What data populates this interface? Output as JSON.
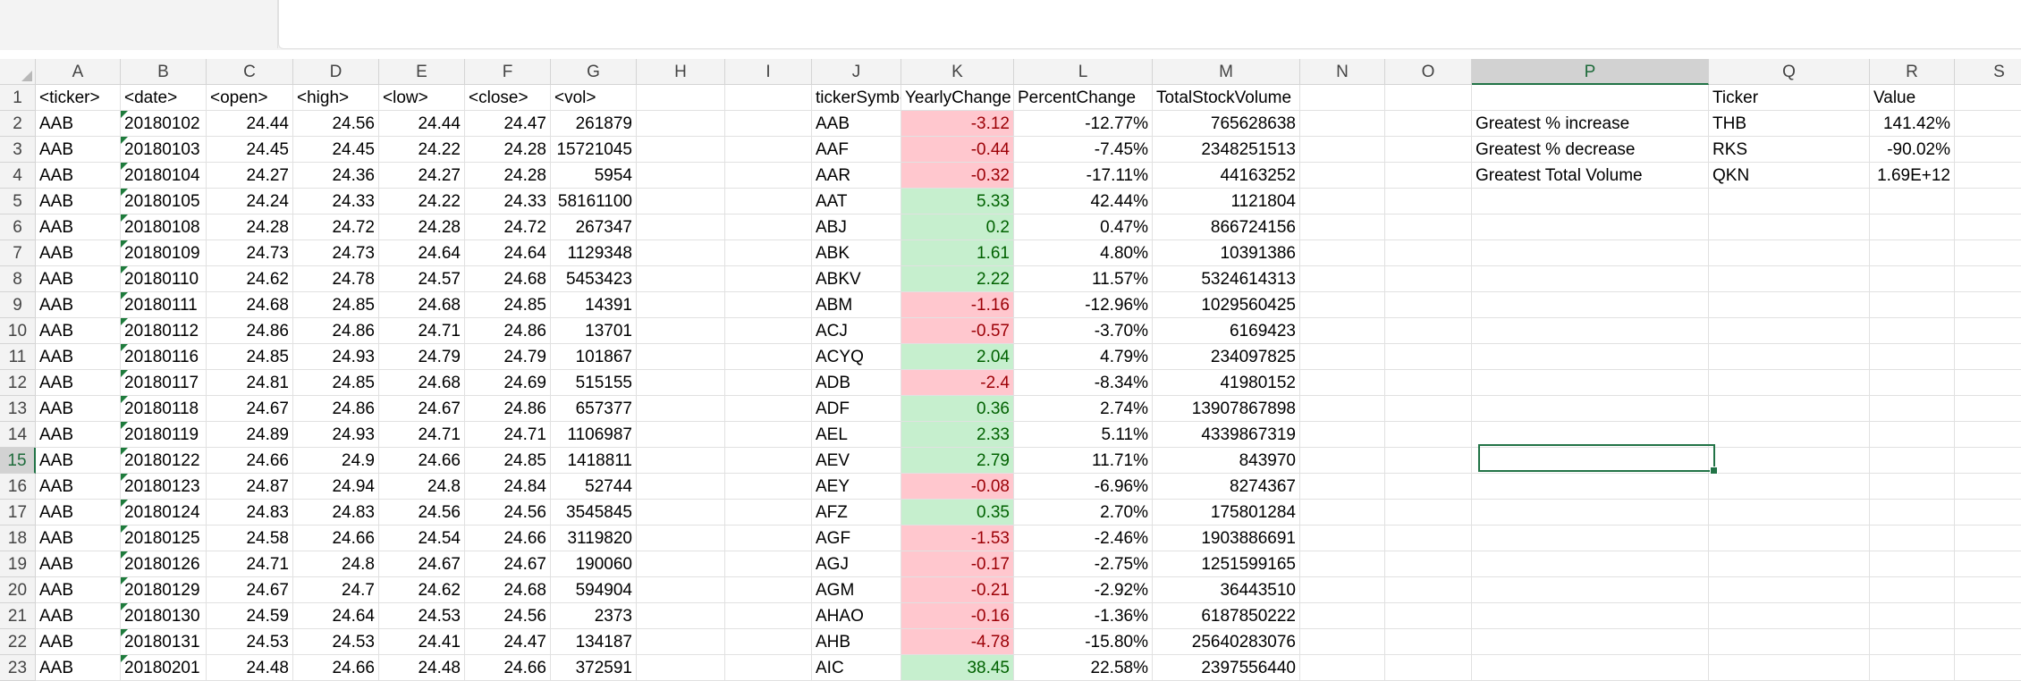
{
  "columns": [
    "A",
    "B",
    "C",
    "D",
    "E",
    "F",
    "G",
    "H",
    "I",
    "J",
    "K",
    "L",
    "M",
    "N",
    "O",
    "P",
    "Q",
    "R",
    "S"
  ],
  "selected": {
    "column": "P",
    "row": 15
  },
  "rows": [
    {
      "n": 1,
      "raw": [
        "<ticker>",
        "<date>",
        "<open>",
        "<high>",
        "<low>",
        "<close>",
        "<vol>"
      ],
      "summary": [
        "tickerSymbol",
        "YearlyChange",
        "PercentChange",
        "TotalStockVolume"
      ],
      "summary_sign": null,
      "bonus": [
        "",
        "Ticker",
        "Value"
      ]
    },
    {
      "n": 2,
      "raw": [
        "AAB",
        "20180102",
        "24.44",
        "24.56",
        "24.44",
        "24.47",
        "261879"
      ],
      "summary": [
        "AAB",
        "-3.12",
        "-12.77%",
        "765628638"
      ],
      "summary_sign": "neg",
      "bonus": [
        "Greatest % increase",
        "THB",
        "141.42%"
      ]
    },
    {
      "n": 3,
      "raw": [
        "AAB",
        "20180103",
        "24.45",
        "24.45",
        "24.22",
        "24.28",
        "15721045"
      ],
      "summary": [
        "AAF",
        "-0.44",
        "-7.45%",
        "2348251513"
      ],
      "summary_sign": "neg",
      "bonus": [
        "Greatest % decrease",
        "RKS",
        "-90.02%"
      ]
    },
    {
      "n": 4,
      "raw": [
        "AAB",
        "20180104",
        "24.27",
        "24.36",
        "24.27",
        "24.28",
        "5954"
      ],
      "summary": [
        "AAR",
        "-0.32",
        "-17.11%",
        "44163252"
      ],
      "summary_sign": "neg",
      "bonus": [
        "Greatest Total Volume",
        "QKN",
        "1.69E+12"
      ]
    },
    {
      "n": 5,
      "raw": [
        "AAB",
        "20180105",
        "24.24",
        "24.33",
        "24.22",
        "24.33",
        "58161100"
      ],
      "summary": [
        "AAT",
        "5.33",
        "42.44%",
        "1121804"
      ],
      "summary_sign": "pos",
      "bonus": [
        "",
        "",
        ""
      ]
    },
    {
      "n": 6,
      "raw": [
        "AAB",
        "20180108",
        "24.28",
        "24.72",
        "24.28",
        "24.72",
        "267347"
      ],
      "summary": [
        "ABJ",
        "0.2",
        "0.47%",
        "866724156"
      ],
      "summary_sign": "pos",
      "bonus": [
        "",
        "",
        ""
      ]
    },
    {
      "n": 7,
      "raw": [
        "AAB",
        "20180109",
        "24.73",
        "24.73",
        "24.64",
        "24.64",
        "1129348"
      ],
      "summary": [
        "ABK",
        "1.61",
        "4.80%",
        "10391386"
      ],
      "summary_sign": "pos",
      "bonus": [
        "",
        "",
        ""
      ]
    },
    {
      "n": 8,
      "raw": [
        "AAB",
        "20180110",
        "24.62",
        "24.78",
        "24.57",
        "24.68",
        "5453423"
      ],
      "summary": [
        "ABKV",
        "2.22",
        "11.57%",
        "5324614313"
      ],
      "summary_sign": "pos",
      "bonus": [
        "",
        "",
        ""
      ]
    },
    {
      "n": 9,
      "raw": [
        "AAB",
        "20180111",
        "24.68",
        "24.85",
        "24.68",
        "24.85",
        "14391"
      ],
      "summary": [
        "ABM",
        "-1.16",
        "-12.96%",
        "1029560425"
      ],
      "summary_sign": "neg",
      "bonus": [
        "",
        "",
        ""
      ]
    },
    {
      "n": 10,
      "raw": [
        "AAB",
        "20180112",
        "24.86",
        "24.86",
        "24.71",
        "24.86",
        "13701"
      ],
      "summary": [
        "ACJ",
        "-0.57",
        "-3.70%",
        "6169423"
      ],
      "summary_sign": "neg",
      "bonus": [
        "",
        "",
        ""
      ]
    },
    {
      "n": 11,
      "raw": [
        "AAB",
        "20180116",
        "24.85",
        "24.93",
        "24.79",
        "24.79",
        "101867"
      ],
      "summary": [
        "ACYQ",
        "2.04",
        "4.79%",
        "234097825"
      ],
      "summary_sign": "pos",
      "bonus": [
        "",
        "",
        ""
      ]
    },
    {
      "n": 12,
      "raw": [
        "AAB",
        "20180117",
        "24.81",
        "24.85",
        "24.68",
        "24.69",
        "515155"
      ],
      "summary": [
        "ADB",
        "-2.4",
        "-8.34%",
        "41980152"
      ],
      "summary_sign": "neg",
      "bonus": [
        "",
        "",
        ""
      ]
    },
    {
      "n": 13,
      "raw": [
        "AAB",
        "20180118",
        "24.67",
        "24.86",
        "24.67",
        "24.86",
        "657377"
      ],
      "summary": [
        "ADF",
        "0.36",
        "2.74%",
        "13907867898"
      ],
      "summary_sign": "pos",
      "bonus": [
        "",
        "",
        ""
      ]
    },
    {
      "n": 14,
      "raw": [
        "AAB",
        "20180119",
        "24.89",
        "24.93",
        "24.71",
        "24.71",
        "1106987"
      ],
      "summary": [
        "AEL",
        "2.33",
        "5.11%",
        "4339867319"
      ],
      "summary_sign": "pos",
      "bonus": [
        "",
        "",
        ""
      ]
    },
    {
      "n": 15,
      "raw": [
        "AAB",
        "20180122",
        "24.66",
        "24.9",
        "24.66",
        "24.85",
        "1418811"
      ],
      "summary": [
        "AEV",
        "2.79",
        "11.71%",
        "843970"
      ],
      "summary_sign": "pos",
      "bonus": [
        "",
        "",
        ""
      ]
    },
    {
      "n": 16,
      "raw": [
        "AAB",
        "20180123",
        "24.87",
        "24.94",
        "24.8",
        "24.84",
        "52744"
      ],
      "summary": [
        "AEY",
        "-0.08",
        "-6.96%",
        "8274367"
      ],
      "summary_sign": "neg",
      "bonus": [
        "",
        "",
        ""
      ]
    },
    {
      "n": 17,
      "raw": [
        "AAB",
        "20180124",
        "24.83",
        "24.83",
        "24.56",
        "24.56",
        "3545845"
      ],
      "summary": [
        "AFZ",
        "0.35",
        "2.70%",
        "175801284"
      ],
      "summary_sign": "pos",
      "bonus": [
        "",
        "",
        ""
      ]
    },
    {
      "n": 18,
      "raw": [
        "AAB",
        "20180125",
        "24.58",
        "24.66",
        "24.54",
        "24.66",
        "3119820"
      ],
      "summary": [
        "AGF",
        "-1.53",
        "-2.46%",
        "1903886691"
      ],
      "summary_sign": "neg",
      "bonus": [
        "",
        "",
        ""
      ]
    },
    {
      "n": 19,
      "raw": [
        "AAB",
        "20180126",
        "24.71",
        "24.8",
        "24.67",
        "24.67",
        "190060"
      ],
      "summary": [
        "AGJ",
        "-0.17",
        "-2.75%",
        "1251599165"
      ],
      "summary_sign": "neg",
      "bonus": [
        "",
        "",
        ""
      ]
    },
    {
      "n": 20,
      "raw": [
        "AAB",
        "20180129",
        "24.67",
        "24.7",
        "24.62",
        "24.68",
        "594904"
      ],
      "summary": [
        "AGM",
        "-0.21",
        "-2.92%",
        "36443510"
      ],
      "summary_sign": "neg",
      "bonus": [
        "",
        "",
        ""
      ]
    },
    {
      "n": 21,
      "raw": [
        "AAB",
        "20180130",
        "24.59",
        "24.64",
        "24.53",
        "24.56",
        "2373"
      ],
      "summary": [
        "AHAO",
        "-0.16",
        "-1.36%",
        "6187850222"
      ],
      "summary_sign": "neg",
      "bonus": [
        "",
        "",
        ""
      ]
    },
    {
      "n": 22,
      "raw": [
        "AAB",
        "20180131",
        "24.53",
        "24.53",
        "24.41",
        "24.47",
        "134187"
      ],
      "summary": [
        "AHB",
        "-4.78",
        "-15.80%",
        "25640283076"
      ],
      "summary_sign": "neg",
      "bonus": [
        "",
        "",
        ""
      ]
    },
    {
      "n": 23,
      "raw": [
        "AAB",
        "20180201",
        "24.48",
        "24.66",
        "24.48",
        "24.66",
        "372591"
      ],
      "summary": [
        "AIC",
        "38.45",
        "22.58%",
        "2397556440"
      ],
      "summary_sign": "pos",
      "bonus": [
        "",
        "",
        ""
      ]
    }
  ]
}
